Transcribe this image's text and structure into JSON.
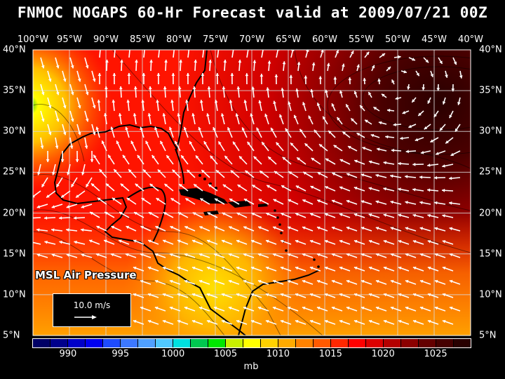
{
  "title": "FNMOC NOGAPS 60-Hr Forecast valid at 2009/07/21 00Z",
  "longitude_labels": [
    "100°W",
    "95°W",
    "90°W",
    "85°W",
    "80°W",
    "75°W",
    "70°W",
    "65°W",
    "60°W",
    "55°W",
    "50°W",
    "45°W",
    "40°W"
  ],
  "latitude_labels": [
    "40°N",
    "35°N",
    "30°N",
    "25°N",
    "20°N",
    "15°N",
    "10°N",
    "5°N"
  ],
  "field_label": "MSL Air Pressure",
  "reference_vector": {
    "label": "10.0 m/s",
    "speed_ms": 10.0
  },
  "colorbar": {
    "ticks": [
      "990",
      "995",
      "1000",
      "1005",
      "1010",
      "1015",
      "1020",
      "1025"
    ],
    "units": "mb",
    "colors": [
      "#000066",
      "#00008c",
      "#0000c8",
      "#0000f0",
      "#1e4bff",
      "#3c78ff",
      "#50a0ff",
      "#50c8ff",
      "#00e0e0",
      "#00c850",
      "#00e600",
      "#c8f000",
      "#ffff00",
      "#ffd200",
      "#ffaa00",
      "#ff8200",
      "#ff5a00",
      "#ff2800",
      "#ff0000",
      "#dc0000",
      "#b40000",
      "#8c0000",
      "#640000",
      "#460000",
      "#280000"
    ]
  },
  "map": {
    "lon_range": [
      -100,
      -40
    ],
    "lat_range": [
      5,
      40
    ],
    "variable": "MSL pressure (mb) with surface wind vectors",
    "high_pressure_center": {
      "lon": -50,
      "lat": 36,
      "pressure_mb": 1025
    },
    "low_pressure_areas": [
      {
        "lon": -100,
        "lat": 33,
        "pressure_mb": 1005
      },
      {
        "lon": -82,
        "lat": 10,
        "pressure_mb": 1009
      }
    ]
  }
}
